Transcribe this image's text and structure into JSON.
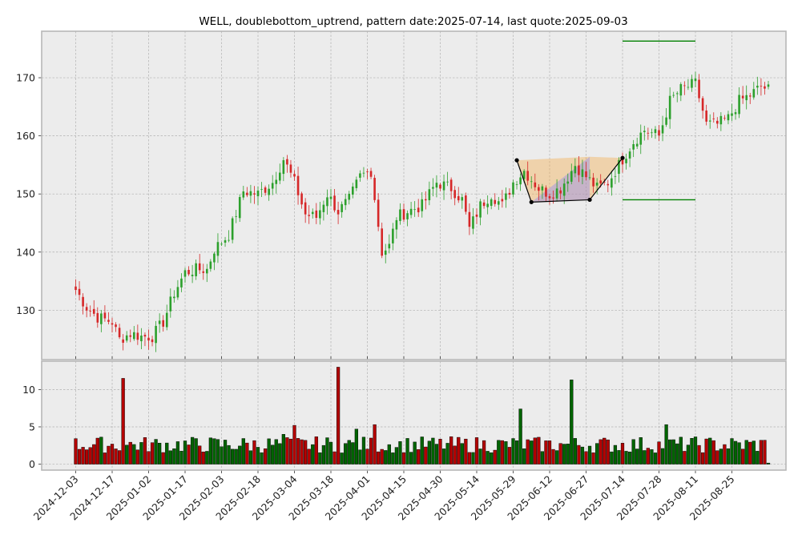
{
  "chart_data": {
    "type": "candlestick",
    "title": "WELL, doublebottom_uptrend, pattern date:2025-07-14, last quote:2025-09-03",
    "price_panel": {
      "ylim": [
        121.5,
        178
      ],
      "yticks": [
        130,
        140,
        150,
        160,
        170
      ],
      "grid": true
    },
    "volume_panel": {
      "ylim": [
        -0.8,
        13.8
      ],
      "yticks": [
        0,
        5,
        10
      ],
      "grid": true
    },
    "x_tick_labels": [
      "2024-12-03",
      "2024-12-17",
      "2025-01-02",
      "2025-01-17",
      "2025-02-03",
      "2025-02-18",
      "2025-03-04",
      "2025-03-18",
      "2025-04-01",
      "2025-04-15",
      "2025-04-30",
      "2025-05-14",
      "2025-05-29",
      "2025-06-12",
      "2025-06-27",
      "2025-07-14",
      "2025-07-28",
      "2025-08-11",
      "2025-08-25"
    ],
    "x_tick_indices": [
      0,
      10,
      20,
      30,
      40,
      50,
      60,
      70,
      80,
      90,
      100,
      110,
      120,
      130,
      140,
      150,
      160,
      170,
      180
    ],
    "price_anchors": [
      [
        0,
        133.5
      ],
      [
        3,
        130.5
      ],
      [
        6,
        128.8
      ],
      [
        10,
        128
      ],
      [
        12,
        125
      ],
      [
        15,
        126
      ],
      [
        18,
        125.5
      ],
      [
        21,
        125.5
      ],
      [
        24,
        128
      ],
      [
        27,
        133
      ],
      [
        30,
        136.5
      ],
      [
        33,
        137
      ],
      [
        36,
        137
      ],
      [
        38,
        140.5
      ],
      [
        42,
        143
      ],
      [
        46,
        150.5
      ],
      [
        50,
        150
      ],
      [
        54,
        152
      ],
      [
        57,
        156
      ],
      [
        60,
        152
      ],
      [
        63,
        146.5
      ],
      [
        66,
        146
      ],
      [
        69,
        150
      ],
      [
        72,
        147
      ],
      [
        75,
        149
      ],
      [
        78,
        153
      ],
      [
        81,
        154
      ],
      [
        84,
        140
      ],
      [
        86,
        141
      ],
      [
        88,
        146
      ],
      [
        91,
        147
      ],
      [
        95,
        148
      ],
      [
        99,
        152
      ],
      [
        103,
        151
      ],
      [
        106,
        149
      ],
      [
        108,
        144
      ],
      [
        111,
        148
      ],
      [
        114,
        150
      ],
      [
        117,
        148
      ],
      [
        120,
        152
      ],
      [
        123,
        154
      ],
      [
        127,
        151
      ],
      [
        130,
        150
      ],
      [
        133,
        151
      ],
      [
        137,
        155
      ],
      [
        140,
        153
      ],
      [
        143,
        151
      ],
      [
        146,
        152
      ],
      [
        150,
        156
      ],
      [
        153,
        159
      ],
      [
        156,
        161
      ],
      [
        160,
        160
      ],
      [
        163,
        166
      ],
      [
        166,
        168
      ],
      [
        170,
        169
      ],
      [
        173,
        162
      ],
      [
        176,
        162
      ],
      [
        179,
        163
      ],
      [
        182,
        166
      ],
      [
        185,
        167
      ],
      [
        188,
        168.5
      ],
      [
        190,
        168
      ]
    ],
    "volume_seed": 7,
    "volume_spikes": [
      [
        13,
        11.5
      ],
      [
        72,
        13
      ],
      [
        77,
        4.7
      ],
      [
        82,
        5.3
      ],
      [
        122,
        7.4
      ],
      [
        136,
        11.3
      ],
      [
        162,
        5.3
      ],
      [
        60,
        5.2
      ],
      [
        57,
        4
      ]
    ],
    "pattern": {
      "points": [
        [
          121,
          155.8
        ],
        [
          125,
          148.6
        ],
        [
          141,
          149
        ],
        [
          150,
          156.2
        ]
      ],
      "upper_band": [
        [
          121,
          155.8
        ],
        [
          141,
          156.4
        ],
        [
          150,
          156.2
        ]
      ],
      "lower_band": [
        [
          125,
          148.6
        ],
        [
          141,
          149
        ]
      ],
      "target_line": {
        "y": 176.3,
        "x": [
          150,
          170
        ]
      },
      "stop_line": {
        "y": 149,
        "x": [
          150,
          170
        ]
      }
    },
    "colors": {
      "up": "#2ca02c",
      "down": "#d62728",
      "vol_up": "#006400",
      "vol_down": "#b30000",
      "band_orange": "#f4a742",
      "band_blue": "#7b7bff",
      "level_line": "#008000",
      "panel_bg": "#ececec",
      "grid": "#b0b0b0"
    }
  }
}
